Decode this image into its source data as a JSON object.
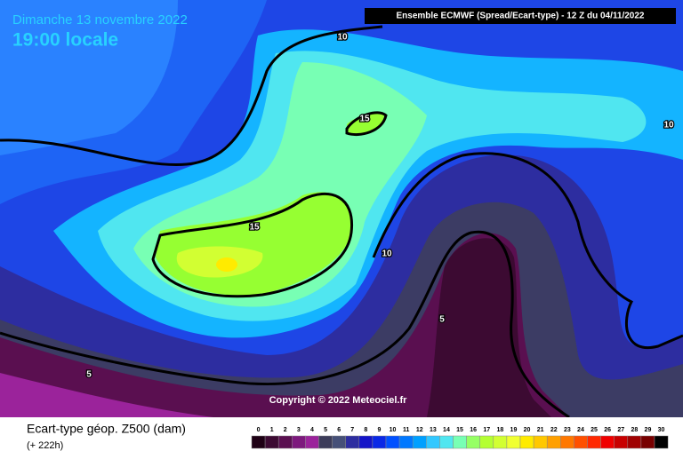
{
  "header": {
    "date": "Dimanche 13 novembre 2022",
    "time": "19:00 locale",
    "run": "Ensemble ECMWF  (Spread/Ecart-type) - 12 Z du 04/11/2022"
  },
  "map": {
    "contour_labels": [
      10,
      15,
      10,
      15,
      10,
      5,
      5
    ],
    "copyright": "Copyright © 2022 Meteociel.fr"
  },
  "legend": {
    "title": "Ecart-type géop. Z500 (dam)",
    "lead": "(+ 222h)",
    "ticks": [
      0,
      1,
      2,
      3,
      4,
      5,
      6,
      7,
      8,
      9,
      10,
      11,
      12,
      13,
      14,
      15,
      16,
      17,
      18,
      19,
      20,
      21,
      22,
      23,
      24,
      25,
      26,
      27,
      28,
      29,
      30
    ],
    "colors": [
      "#1e0014",
      "#3c0a32",
      "#5a0f50",
      "#7d197d",
      "#9b239b",
      "#3c3c5a",
      "#465078",
      "#2d2da0",
      "#1414c8",
      "#0a28e6",
      "#0050ff",
      "#0078ff",
      "#00a0ff",
      "#32c8ff",
      "#50e6f0",
      "#78ffb4",
      "#96ff64",
      "#b4ff32",
      "#d2ff32",
      "#f0ff32",
      "#ffeb00",
      "#ffc800",
      "#ffa000",
      "#ff7800",
      "#ff5000",
      "#ff2800",
      "#f00000",
      "#c80000",
      "#a00000",
      "#780000",
      "#000000"
    ]
  }
}
